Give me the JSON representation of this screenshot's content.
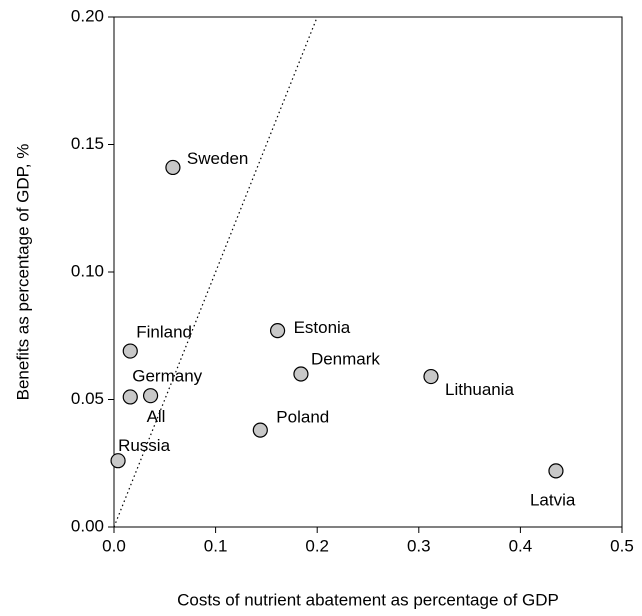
{
  "chart_data": {
    "type": "scatter",
    "xlabel": "Costs of nutrient abatement as percentage of GDP",
    "ylabel": "Benefits as percentage of GDP, %",
    "points": [
      "Sweden",
      "Finland",
      "Germany",
      "All",
      "Russia",
      "Poland",
      "Estonia",
      "Denmark",
      "Lithuania",
      "Latvia"
    ],
    "x": [
      0.058,
      0.016,
      0.016,
      0.036,
      0.004,
      0.144,
      0.161,
      0.184,
      0.312,
      0.435
    ],
    "values": [
      0.141,
      0.069,
      0.051,
      0.0515,
      0.026,
      0.038,
      0.077,
      0.06,
      0.059,
      0.022
    ],
    "color": "#c8c8c8",
    "xlim": [
      0,
      0.5
    ],
    "xticks": [
      {
        "value": 0,
        "label": "0.0"
      },
      0.1,
      0.2,
      0.3,
      0.4,
      0.5
    ],
    "ylim": [
      0,
      0.2
    ],
    "yticks": [
      {
        "value": 0,
        "label": "0.00"
      },
      {
        "value": 0.05,
        "label": "0.05"
      },
      {
        "value": 0.1,
        "label": "0.10"
      },
      {
        "value": 0.15,
        "label": "0.15"
      },
      {
        "value": 0.2,
        "label": "0.20"
      }
    ]
  }
}
